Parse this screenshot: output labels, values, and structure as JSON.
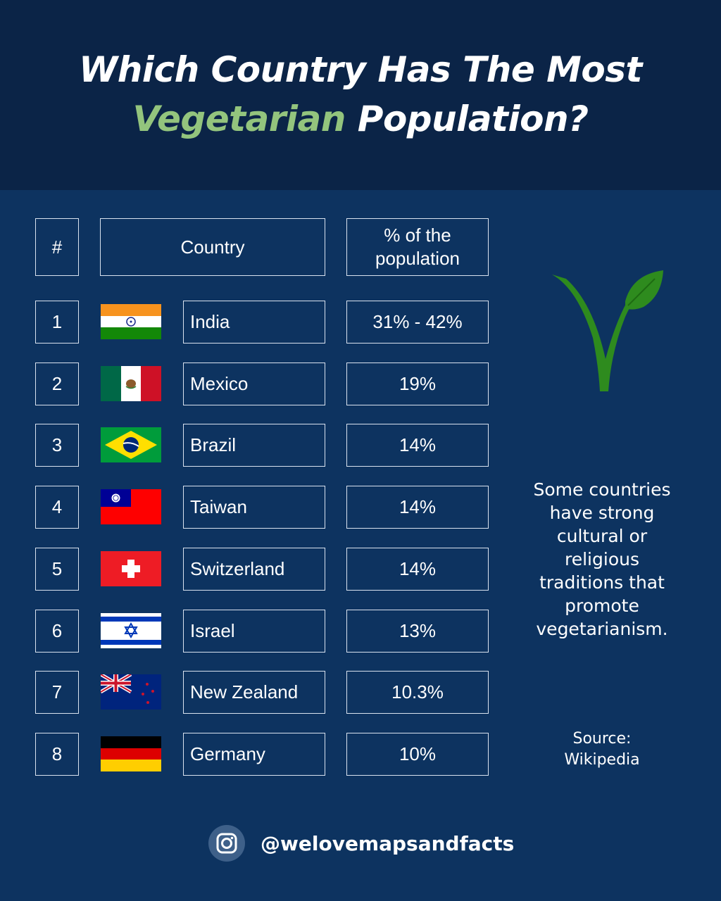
{
  "title": {
    "line1": "Which Country Has The Most",
    "accent_word": "Vegetarian",
    "line2_rest": " Population?"
  },
  "colors": {
    "background": "#0d3360",
    "header_bg": "#0b2447",
    "accent": "#93c47d",
    "border": "#d9e2ef",
    "leaf": "#2e8b1e"
  },
  "chart_data": {
    "type": "table",
    "columns": [
      "#",
      "Country",
      "% of the population"
    ],
    "rows": [
      {
        "rank": "1",
        "country": "India",
        "percent": "31% - 42%",
        "flag": "india-flag"
      },
      {
        "rank": "2",
        "country": "Mexico",
        "percent": "19%",
        "flag": "mexico-flag"
      },
      {
        "rank": "3",
        "country": "Brazil",
        "percent": "14%",
        "flag": "brazil-flag"
      },
      {
        "rank": "4",
        "country": "Taiwan",
        "percent": "14%",
        "flag": "taiwan-flag"
      },
      {
        "rank": "5",
        "country": "Switzerland",
        "percent": "14%",
        "flag": "switzerland-flag"
      },
      {
        "rank": "6",
        "country": "Israel",
        "percent": "13%",
        "flag": "israel-flag"
      },
      {
        "rank": "7",
        "country": "New Zealand",
        "percent": "10.3%",
        "flag": "new-zealand-flag"
      },
      {
        "rank": "8",
        "country": "Germany",
        "percent": "10%",
        "flag": "germany-flag"
      }
    ]
  },
  "table": {
    "header_rank": "#",
    "header_country": "Country",
    "header_pct_line1": "% of the",
    "header_pct_line2": "population"
  },
  "side": {
    "logo_icon": "vegan-v-leaf-icon",
    "text_lines": [
      "Some countries",
      "have strong",
      "cultural or",
      "religious",
      "traditions that",
      "promote",
      "vegetarianism."
    ],
    "source_line1": "Source:",
    "source_line2": "Wikipedia"
  },
  "footer": {
    "icon": "instagram-icon",
    "handle": "@welovemapsandfacts"
  }
}
